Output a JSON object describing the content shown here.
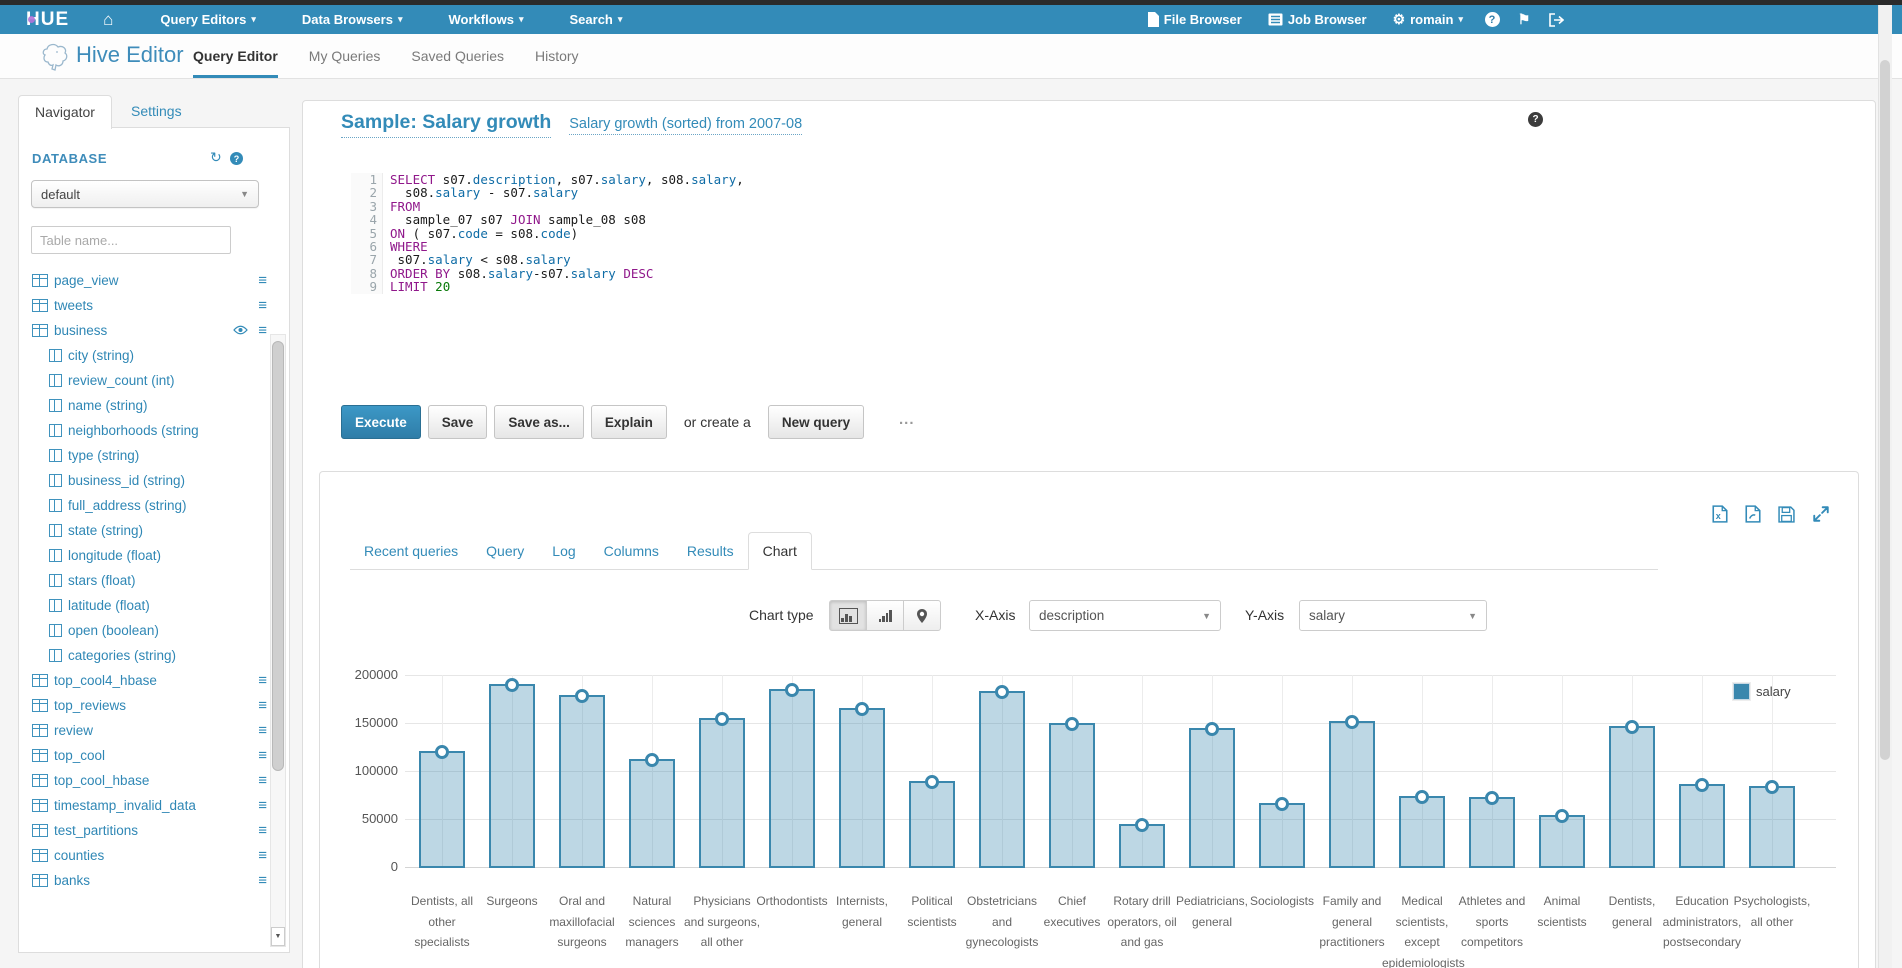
{
  "navbar": {
    "logo_text": "HUE",
    "menus": [
      {
        "label": "Query Editors",
        "caret": true
      },
      {
        "label": "Data Browsers",
        "caret": true
      },
      {
        "label": "Workflows",
        "caret": true
      },
      {
        "label": "Search",
        "caret": true
      }
    ],
    "right_items": [
      {
        "label": "File Browser",
        "icon": "file"
      },
      {
        "label": "Job Browser",
        "icon": "list"
      },
      {
        "label": "romain",
        "icon": "gear",
        "caret": true
      }
    ],
    "icon_buttons": [
      "help",
      "flag",
      "logout"
    ]
  },
  "subnav": {
    "app_title": "Hive Editor",
    "tabs": [
      {
        "label": "Query Editor",
        "active": true
      },
      {
        "label": "My Queries",
        "active": false
      },
      {
        "label": "Saved Queries",
        "active": false
      },
      {
        "label": "History",
        "active": false
      }
    ]
  },
  "sidebar": {
    "tabs": [
      {
        "label": "Navigator",
        "active": true
      },
      {
        "label": "Settings",
        "active": false
      }
    ],
    "section_title": "DATABASE",
    "database_value": "default",
    "filter_placeholder": "Table name...",
    "items": [
      {
        "kind": "table",
        "label": "page_view"
      },
      {
        "kind": "table",
        "label": "tweets"
      },
      {
        "kind": "table",
        "label": "business",
        "eye": true
      },
      {
        "kind": "column",
        "label": "city (string)"
      },
      {
        "kind": "column",
        "label": "review_count (int)"
      },
      {
        "kind": "column",
        "label": "name (string)"
      },
      {
        "kind": "column",
        "label": "neighborhoods (string"
      },
      {
        "kind": "column",
        "label": "type (string)"
      },
      {
        "kind": "column",
        "label": "business_id (string)"
      },
      {
        "kind": "column",
        "label": "full_address (string)"
      },
      {
        "kind": "column",
        "label": "state (string)"
      },
      {
        "kind": "column",
        "label": "longitude (float)"
      },
      {
        "kind": "column",
        "label": "stars (float)"
      },
      {
        "kind": "column",
        "label": "latitude (float)"
      },
      {
        "kind": "column",
        "label": "open (boolean)"
      },
      {
        "kind": "column",
        "label": "categories (string)"
      },
      {
        "kind": "table",
        "label": "top_cool4_hbase"
      },
      {
        "kind": "table",
        "label": "top_reviews"
      },
      {
        "kind": "table",
        "label": "review"
      },
      {
        "kind": "table",
        "label": "top_cool"
      },
      {
        "kind": "table",
        "label": "top_cool_hbase"
      },
      {
        "kind": "table",
        "label": "timestamp_invalid_data"
      },
      {
        "kind": "table",
        "label": "test_partitions"
      },
      {
        "kind": "table",
        "label": "counties"
      },
      {
        "kind": "table",
        "label": "banks"
      }
    ]
  },
  "query": {
    "title": "Sample: Salary growth",
    "subtitle": "Salary growth (sorted) from 2007-08",
    "sql_lines": [
      [
        {
          "t": "SELECT",
          "c": "kw"
        },
        {
          "t": " s07.",
          "c": "pl"
        },
        {
          "t": "description",
          "c": "fld"
        },
        {
          "t": ", s07.",
          "c": "pl"
        },
        {
          "t": "salary",
          "c": "fld"
        },
        {
          "t": ", s08.",
          "c": "pl"
        },
        {
          "t": "salary",
          "c": "fld"
        },
        {
          "t": ",",
          "c": "pl"
        }
      ],
      [
        {
          "t": "  s08.",
          "c": "pl"
        },
        {
          "t": "salary",
          "c": "fld"
        },
        {
          "t": " - s07.",
          "c": "pl"
        },
        {
          "t": "salary",
          "c": "fld"
        }
      ],
      [
        {
          "t": "FROM",
          "c": "kw"
        }
      ],
      [
        {
          "t": "  sample_07 s07 ",
          "c": "pl"
        },
        {
          "t": "JOIN",
          "c": "kw"
        },
        {
          "t": " sample_08 s08",
          "c": "pl"
        }
      ],
      [
        {
          "t": "ON",
          "c": "kw"
        },
        {
          "t": " ( s07.",
          "c": "pl"
        },
        {
          "t": "code",
          "c": "fld"
        },
        {
          "t": " = s08.",
          "c": "pl"
        },
        {
          "t": "code",
          "c": "fld"
        },
        {
          "t": ")",
          "c": "pl"
        }
      ],
      [
        {
          "t": "WHERE",
          "c": "kw"
        }
      ],
      [
        {
          "t": " s07.",
          "c": "pl"
        },
        {
          "t": "salary",
          "c": "fld"
        },
        {
          "t": " < s08.",
          "c": "pl"
        },
        {
          "t": "salary",
          "c": "fld"
        }
      ],
      [
        {
          "t": "ORDER BY",
          "c": "kw"
        },
        {
          "t": " s08.",
          "c": "pl"
        },
        {
          "t": "salary",
          "c": "fld"
        },
        {
          "t": "-s07.",
          "c": "pl"
        },
        {
          "t": "salary",
          "c": "fld"
        },
        {
          "t": " ",
          "c": "pl"
        },
        {
          "t": "DESC",
          "c": "kw"
        }
      ],
      [
        {
          "t": "LIMIT",
          "c": "kw"
        },
        {
          "t": " ",
          "c": "pl"
        },
        {
          "t": "20",
          "c": "num"
        }
      ]
    ],
    "buttons": {
      "execute": "Execute",
      "save": "Save",
      "save_as": "Save as...",
      "explain": "Explain",
      "or_text": "or create a",
      "new_query": "New query"
    },
    "resize_handle": "..."
  },
  "results": {
    "tabs": [
      {
        "label": "Recent queries",
        "active": false
      },
      {
        "label": "Query",
        "active": false
      },
      {
        "label": "Log",
        "active": false
      },
      {
        "label": "Columns",
        "active": false
      },
      {
        "label": "Results",
        "active": false
      },
      {
        "label": "Chart",
        "active": true
      }
    ],
    "toolbar_icons": [
      "download-excel",
      "download-csv",
      "save-results",
      "expand-results"
    ],
    "controls": {
      "chart_type_label": "Chart type",
      "chart_types": [
        "bar-chart",
        "sorted-bars",
        "map-marker"
      ],
      "active_chart_type": "bar-chart",
      "x_axis_label": "X-Axis",
      "x_axis_value": "description",
      "y_axis_label": "Y-Axis",
      "y_axis_value": "salary"
    }
  },
  "chart_data": {
    "type": "bar",
    "title": "",
    "xlabel": "",
    "ylabel": "",
    "categories": [
      "Dentists, all other specialists",
      "Surgeons",
      "Oral and maxillofacial surgeons",
      "Natural sciences managers",
      "Physicians and surgeons, all other",
      "Orthodontists",
      "Internists, general",
      "Political scientists",
      "Obstetricians and gynecologists",
      "Chief executives",
      "Rotary drill operators, oil and gas",
      "Pediatricians, general",
      "Sociologists",
      "Family and general practitioners",
      "Medical scientists, except epidemiologists",
      "Athletes and sports competitors",
      "Animal scientists",
      "Dentists, general",
      "Education administrators, postsecondary",
      "Psychologists, all other"
    ],
    "values": [
      122000,
      192000,
      180000,
      114000,
      156000,
      186000,
      167000,
      91000,
      184000,
      151000,
      46000,
      146000,
      68000,
      153000,
      75000,
      74000,
      55000,
      148000,
      87000,
      85000
    ],
    "yticks": [
      0,
      50000,
      100000,
      150000,
      200000
    ],
    "ylim": [
      0,
      200000
    ],
    "grid": true,
    "legend": [
      "salary"
    ],
    "legend_position": "top-right",
    "bar_fill": "#b9d5e2",
    "bar_border": "#3a87ad"
  },
  "colors": {
    "accent": "#338bb8",
    "navbar_bg": "#338bb8",
    "sql_keyword": "#90188b",
    "sql_field": "#0f6ca6",
    "sql_number": "#0a7a0a"
  }
}
